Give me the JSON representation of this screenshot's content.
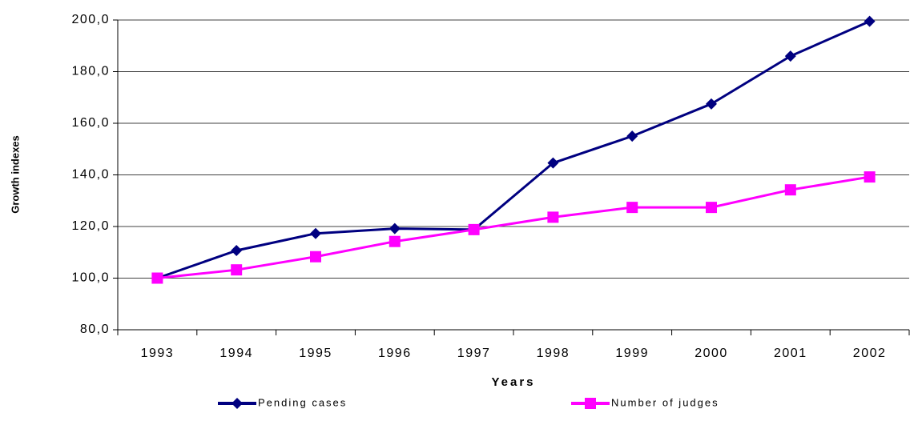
{
  "chart_data": {
    "type": "line",
    "x_label": "Years",
    "y_label": "Growth indexes",
    "categories": [
      "1993",
      "1994",
      "1995",
      "1996",
      "1997",
      "1998",
      "1999",
      "2000",
      "2001",
      "2002"
    ],
    "series": [
      {
        "name": "Pending cases",
        "color": "#000080",
        "marker": "diamond",
        "values": [
          100,
          110.7,
          117.3,
          119.2,
          118.8,
          144.6,
          155.0,
          167.5,
          186.0,
          199.5
        ]
      },
      {
        "name": "Number of judges",
        "color": "#ff00ff",
        "marker": "square",
        "values": [
          100,
          103.2,
          108.3,
          114.2,
          118.8,
          123.6,
          127.4,
          127.4,
          134.2,
          139.2
        ]
      }
    ],
    "ylim": [
      80,
      200
    ],
    "yticks": [
      {
        "value": 80,
        "label": "80,0"
      },
      {
        "value": 100,
        "label": "100,0"
      },
      {
        "value": 120,
        "label": "120,0"
      },
      {
        "value": 140,
        "label": "140,0"
      },
      {
        "value": 160,
        "label": "160,0"
      },
      {
        "value": 180,
        "label": "180,0"
      },
      {
        "value": 200,
        "label": "200,0"
      }
    ],
    "grid": true,
    "legend": "bottom"
  }
}
